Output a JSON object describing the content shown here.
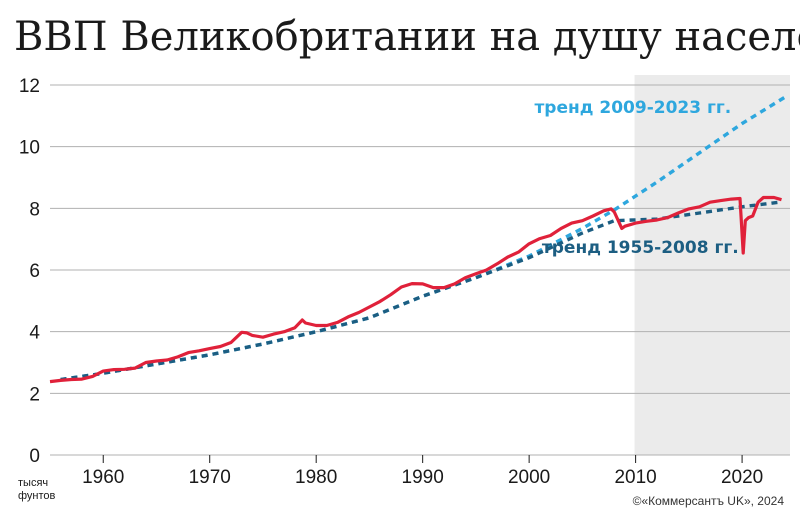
{
  "chart_data": {
    "type": "line",
    "title": "ВВП Великобритании на душу населения",
    "unit_label_1": "тысяч",
    "unit_label_2": "фунтов",
    "credit": "©«Коммерсантъ UK», 2024",
    "xlim": [
      1955,
      2024.5
    ],
    "ylim": [
      0,
      12
    ],
    "yticks": [
      0,
      2,
      4,
      6,
      8,
      10,
      12
    ],
    "xticks": [
      1960,
      1970,
      1980,
      1990,
      2000,
      2010,
      2020
    ],
    "shaded_region": [
      2009.9,
      2024.5
    ],
    "grid": true,
    "colors": {
      "gdp": "#e0213a",
      "trend_2009_2023": "#2ea7de",
      "trend_1955_2008": "#1c5e82",
      "shade": "#ebebeb",
      "grid": "#b0b0b0"
    },
    "annotations": [
      {
        "name": "annotation-trend-2009-2023",
        "text": "тренд 2009-2023 гг.",
        "x": 2000.5,
        "y": 11.1,
        "color": "#2ea7de"
      },
      {
        "name": "annotation-trend-1955-2008",
        "text": "тренд 1955-2008 гг.",
        "x": 2001.2,
        "y": 6.55,
        "color": "#1c5e82"
      }
    ],
    "series": [
      {
        "key": "gdp",
        "x": [
          1955,
          1956,
          1957,
          1958,
          1959,
          1960,
          1961,
          1962,
          1963,
          1964,
          1965,
          1966,
          1967,
          1968,
          1969,
          1970,
          1971,
          1972,
          1973,
          1973.5,
          1974,
          1975,
          1976,
          1977,
          1978,
          1978.7,
          1979,
          1980,
          1981,
          1982,
          1983,
          1984,
          1985,
          1986,
          1987,
          1988,
          1989,
          1990,
          1991,
          1992,
          1993,
          1994,
          1995,
          1996,
          1997,
          1998,
          1999,
          2000,
          2001,
          2002,
          2003,
          2004,
          2005,
          2006,
          2007,
          2007.7,
          2008,
          2008.7,
          2009,
          2010,
          2011,
          2012,
          2013,
          2014,
          2015,
          2016,
          2017,
          2018,
          2019,
          2019.8,
          2020.1,
          2020.3,
          2020.6,
          2021,
          2021.5,
          2022,
          2023,
          2023.7
        ],
        "y": [
          2.38,
          2.42,
          2.45,
          2.46,
          2.55,
          2.72,
          2.77,
          2.78,
          2.82,
          3.0,
          3.05,
          3.08,
          3.18,
          3.32,
          3.38,
          3.45,
          3.52,
          3.65,
          3.98,
          3.96,
          3.88,
          3.82,
          3.92,
          4.0,
          4.13,
          4.38,
          4.28,
          4.2,
          4.2,
          4.3,
          4.48,
          4.62,
          4.8,
          4.98,
          5.2,
          5.45,
          5.56,
          5.55,
          5.43,
          5.43,
          5.55,
          5.75,
          5.88,
          6.0,
          6.2,
          6.42,
          6.58,
          6.85,
          7.02,
          7.12,
          7.35,
          7.52,
          7.6,
          7.75,
          7.92,
          7.98,
          7.88,
          7.35,
          7.42,
          7.52,
          7.58,
          7.62,
          7.7,
          7.85,
          7.98,
          8.05,
          8.2,
          8.25,
          8.3,
          8.32,
          6.55,
          7.6,
          7.7,
          7.75,
          8.2,
          8.35,
          8.35,
          8.28
        ]
      },
      {
        "key": "trend_1955_2008",
        "x": [
          1956,
          1960,
          1965,
          1970,
          1975,
          1980,
          1985,
          1990,
          1995,
          2000,
          2005,
          2008,
          2012,
          2016,
          2020,
          2023.5
        ],
        "y": [
          2.45,
          2.65,
          2.95,
          3.25,
          3.6,
          4.0,
          4.45,
          5.15,
          5.75,
          6.4,
          7.2,
          7.6,
          7.65,
          7.85,
          8.05,
          8.2
        ]
      },
      {
        "key": "trend_2009_2023",
        "x": [
          1956,
          1960,
          1965,
          1970,
          1975,
          1980,
          1985,
          1990,
          1995,
          2000,
          2005,
          2008,
          2012,
          2016,
          2020,
          2024
        ],
        "y": [
          2.45,
          2.65,
          2.95,
          3.25,
          3.6,
          4.0,
          4.45,
          5.15,
          5.75,
          6.45,
          7.35,
          7.95,
          8.85,
          9.8,
          10.75,
          11.6
        ]
      }
    ]
  }
}
